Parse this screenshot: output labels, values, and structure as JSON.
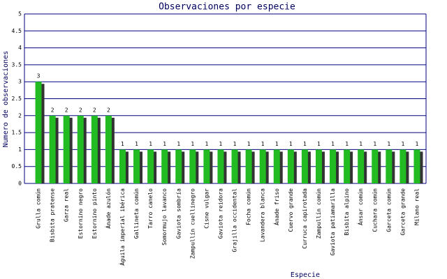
{
  "chart_data": {
    "type": "bar",
    "title": "Observaciones por especie",
    "x_label": "Especie",
    "y_label": "Numero de observaciones",
    "categories": [
      "Grulla común",
      "Bisbita pratense",
      "Garza real",
      "Estornino negro",
      "Estornino pinto",
      "Ánade azulón",
      "Águila imperial ibérica",
      "Gallineta común",
      "Tarro canelo",
      "Somormujo lavanco",
      "Gaviota sombría",
      "Zampullín cuellinegro",
      "Cisne vulgar",
      "Gaviota reidora",
      "Grajilla occidental",
      "Focha común",
      "Lavandera blanca",
      "Ánade friso",
      "Cuervo grande",
      "Curruca capirotada",
      "Zampullín común",
      "Gaviota patiamarilla",
      "Bisbita alpino",
      "Ánsar común",
      "Cuchara común",
      "Garceta común",
      "Garceta grande",
      "Milano real"
    ],
    "values": [
      3,
      2,
      2,
      2,
      2,
      2,
      1,
      1,
      1,
      1,
      1,
      1,
      1,
      1,
      1,
      1,
      1,
      1,
      1,
      1,
      1,
      1,
      1,
      1,
      1,
      1,
      1,
      1
    ],
    "color": "#22bb22",
    "ylim": [
      0,
      5
    ],
    "yticks": [
      0,
      0.5,
      1,
      1.5,
      2,
      2.5,
      3,
      3.5,
      4,
      4.5,
      5
    ],
    "grid": true
  }
}
